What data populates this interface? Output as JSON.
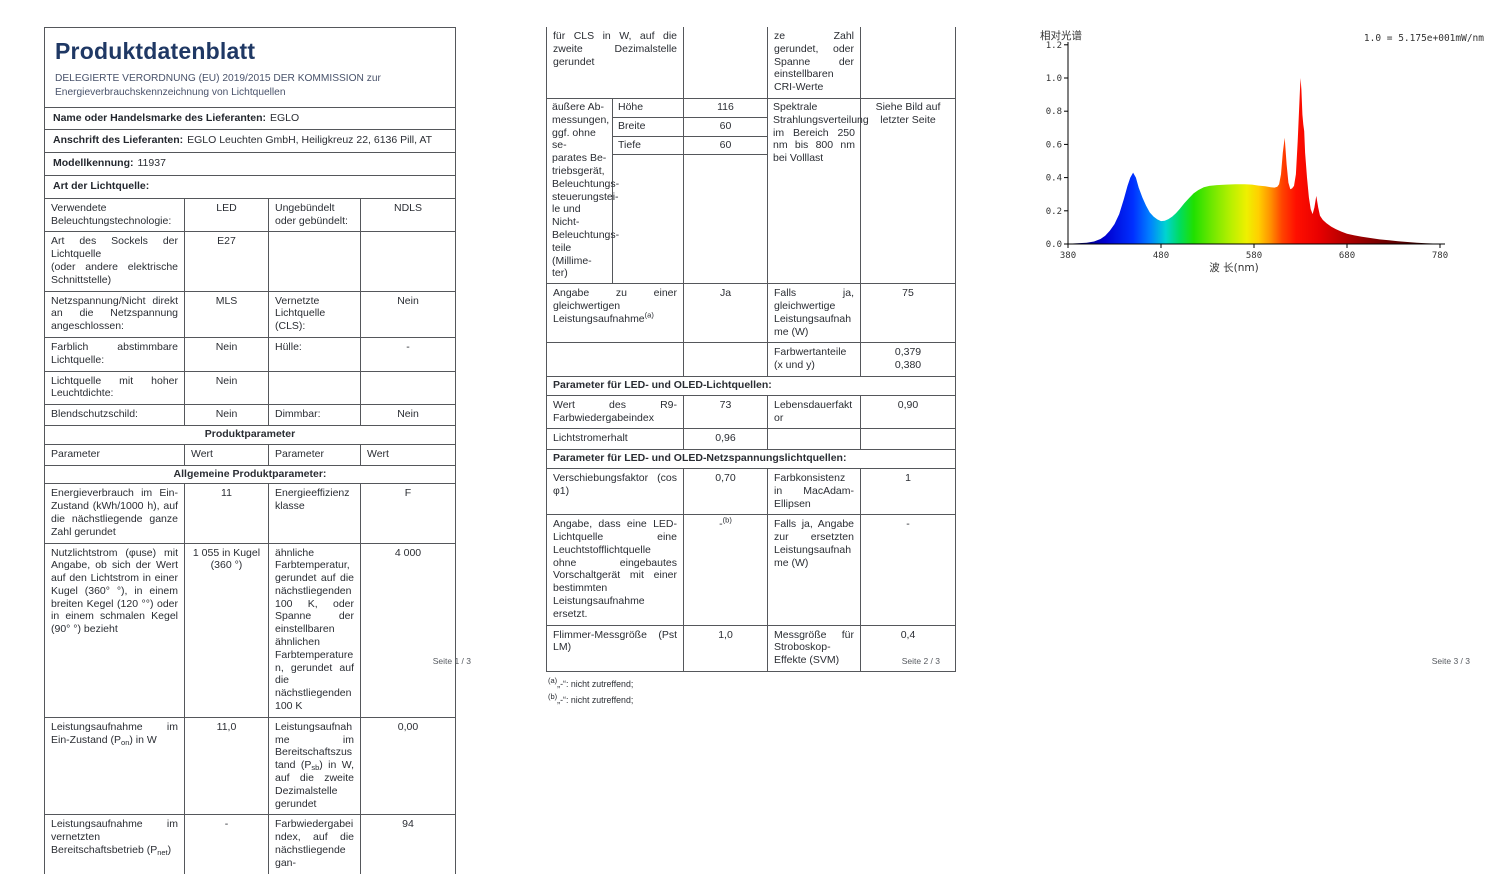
{
  "page1": {
    "title": "Produktdatenblatt",
    "subtitle_line1": "DELEGIERTE VERORDNUNG (EU) 2019/2015 DER KOMMISSION zur",
    "subtitle_line2": "Energieverbrauchskennzeichnung von Lichtquellen",
    "supplier_label": "Name oder Handelsmarke des Lieferanten:",
    "supplier_value": "EGLO",
    "address_label": "Anschrift des Lieferanten:",
    "address_value": "EGLO Leuchten GmbH, Heiligkreuz 22, 6136 Pill, AT",
    "model_label": "Modellkennung:",
    "model_value": "11937",
    "light_source_label": "Art der Lichtquelle:",
    "tech": {
      "r1p1": "Verwendete Beleuchtungstechnologie:",
      "r1v1": "LED",
      "r1p2": "Ungebündelt oder gebündelt:",
      "r1v2": "NDLS",
      "r2p1": "Art des Sockels der Lichtquelle\n(oder andere elektrische Schnittstelle)",
      "r2v1": "E27",
      "r2p2": "",
      "r2v2": "",
      "r3p1": "Netzspannung/Nicht direkt an die Netzspannung angeschlossen:",
      "r3v1": "MLS",
      "r3p2": "Vernetzte Lichtquelle (CLS):",
      "r3v2": "Nein",
      "r4p1": "Farblich abstimmbare Lichtquelle:",
      "r4v1": "Nein",
      "r4p2": "Hülle:",
      "r4v2": "-",
      "r5p1": "Lichtquelle mit hoher Leuchtdichte:",
      "r5v1": "Nein",
      "r5p2": "",
      "r5v2": "",
      "r6p1": "Blendschutzschild:",
      "r6v1": "Nein",
      "r6p2": "Dimmbar:",
      "r6v2": "Nein"
    },
    "sections": {
      "produktparameter": "Produktparameter",
      "col_param": "Parameter",
      "col_wert": "Wert",
      "allgemeine": "Allgemeine Produktparameter:"
    },
    "params": {
      "r1p1": "Energieverbrauch im Ein-Zustand (kWh/1000 h), auf die nächstliegende ganze Zahl gerundet",
      "r1v1": "11",
      "r1p2": "Energieeffizienzklasse",
      "r1v2": "F",
      "r2p1": "Nutzlichtstrom (φuse) mit Angabe, ob sich der Wert auf den Lichtstrom in einer Kugel (360° °), in einem breiten Kegel (120 °°) oder in einem schmalen Kegel (90° °) bezieht",
      "r2v1": "1 055 in Kugel (360 °)",
      "r2p2": "ähnliche Farbtemperatur, gerundet auf die nächstliegenden 100 K, oder Spanne der einstellbaren ähnlichen Farbtemperaturen, gerundet auf die nächstliegenden 100 K",
      "r2v2": "4 000",
      "r3p1_pre": "Leistungsaufnahme im Ein-Zustand (P",
      "r3p1_sub": "on",
      "r3p1_post": ") in W",
      "r3v1": "11,0",
      "r3p2_pre": "Leistungsaufnahme im Bereitschaftszustand (P",
      "r3p2_sub": "sb",
      "r3p2_post": ") in W, auf die zweite Dezimalstelle gerundet",
      "r3v2": "0,00",
      "r4p1_pre": "Leistungsaufnahme im vernetzten Bereitschaftsbetrieb (P",
      "r4p1_sub": "net",
      "r4p1_post": ")",
      "r4v1": "-",
      "r4p2": "Farbwiedergabein­dex, auf die nächstliegende gan-",
      "r4v2": "94"
    }
  },
  "page2": {
    "cont": {
      "p1": "für CLS in W, auf die zweite Dezimalstelle gerundet",
      "v1": "",
      "p2": "ze Zahl gerundet, oder Spanne der einstellbaren CRI-Werte",
      "v2": ""
    },
    "dims": {
      "label": "äußere Ab-\nmessungen,\nggf. ohne se-\nparates Be-\ntriebsgerät,\nBeleuchtungs-\nsteuerungstei-\nle und Nicht-\nBeleuchtungs-\nteile (Millime-\nter)",
      "hoehe": "Höhe",
      "hoehe_v": "116",
      "breite": "Breite",
      "breite_v": "60",
      "tiefe": "Tiefe",
      "tiefe_v": "60",
      "p2": "Spektrale Strahlungsverteilung im Bereich 250 nm bis 800 nm bei Volllast",
      "v2": "Siehe Bild auf letzter Seite"
    },
    "equiv": {
      "p1": "Angabe zu einer gleichwertigen Leistungsaufnahme",
      "p1_sup": "(a)",
      "v1": "Ja",
      "p2": "Falls ja, gleichwertige Leistungsaufnahme (W)",
      "v2": "75"
    },
    "chrom": {
      "p2": "Farbwertanteile (x und y)",
      "v2a": "0,379",
      "v2b": "0,380"
    },
    "led_section": "Parameter für LED- und OLED-Lichtquellen:",
    "r9": {
      "p1": "Wert des R9-Farbwiedergabeindex",
      "v1": "73",
      "p2": "Lebensdauerfaktor",
      "v2": "0,90"
    },
    "lumen": {
      "p1": "Lichtstromerhalt",
      "v1": "0,96",
      "p2": "",
      "v2": ""
    },
    "mains_section": "Parameter für LED- und OLED-Netzspannungslichtquellen:",
    "disp": {
      "p1": "Verschiebungsfaktor (cos φ1)",
      "v1": "0,70",
      "p2": "Farbkonsistenz in MacAdam-Ellipsen",
      "v2": "1"
    },
    "replace": {
      "p1": "Angabe, dass eine LED-Lichtquelle eine Leuchtstofflichtquelle ohne eingebautes Vorschaltgerät mit einer bestimmten Leistungsaufnahme ersetzt.",
      "v1_pre": "-",
      "v1_sup": "(b)",
      "p2": "Falls ja, Angabe zur ersetzten Leistungsaufnahme (W)",
      "v2": "-"
    },
    "flicker": {
      "p1": "Flimmer-Messgröße (Pst LM)",
      "v1": "1,0",
      "p2": "Messgröße für Stroboskop-Effekte (SVM)",
      "v2": "0,4"
    },
    "footnote_a_sup": "(a)",
    "footnote_a": "„-“: nicht zutreffend;",
    "footnote_b_sup": "(b)",
    "footnote_b": "„-“: nicht zutreffend;"
  },
  "footer": {
    "page1": "Seite 1 / 3",
    "page2": "Seite 2 / 3",
    "page3": "Seite 3 / 3"
  },
  "chart_data": {
    "type": "area",
    "title_left": "相对光谱",
    "scale_note": "1.0 = 5.175e+001mW/nm",
    "xlabel": "波 长(nm)",
    "xlim": [
      380,
      780
    ],
    "ylim": [
      0,
      1.2
    ],
    "x_ticks": [
      380,
      480,
      580,
      680,
      780
    ],
    "y_ticks": [
      "0.0",
      "0.2",
      "0.4",
      "0.6",
      "0.8",
      "1.0",
      "1.2"
    ],
    "grid": false,
    "series": [
      {
        "name": "relative spectral power distribution",
        "points": [
          [
            380,
            0.002
          ],
          [
            390,
            0.004
          ],
          [
            400,
            0.008
          ],
          [
            408,
            0.015
          ],
          [
            415,
            0.03
          ],
          [
            420,
            0.05
          ],
          [
            425,
            0.08
          ],
          [
            430,
            0.12
          ],
          [
            435,
            0.18
          ],
          [
            440,
            0.27
          ],
          [
            444,
            0.35
          ],
          [
            447,
            0.4
          ],
          [
            450,
            0.43
          ],
          [
            453,
            0.4
          ],
          [
            456,
            0.34
          ],
          [
            460,
            0.28
          ],
          [
            464,
            0.23
          ],
          [
            468,
            0.19
          ],
          [
            472,
            0.165
          ],
          [
            476,
            0.148
          ],
          [
            480,
            0.138
          ],
          [
            484,
            0.14
          ],
          [
            488,
            0.15
          ],
          [
            492,
            0.165
          ],
          [
            496,
            0.185
          ],
          [
            500,
            0.21
          ],
          [
            505,
            0.245
          ],
          [
            510,
            0.275
          ],
          [
            515,
            0.305
          ],
          [
            520,
            0.325
          ],
          [
            526,
            0.342
          ],
          [
            532,
            0.35
          ],
          [
            540,
            0.355
          ],
          [
            550,
            0.358
          ],
          [
            560,
            0.36
          ],
          [
            570,
            0.36
          ],
          [
            578,
            0.358
          ],
          [
            585,
            0.352
          ],
          [
            592,
            0.348
          ],
          [
            598,
            0.342
          ],
          [
            602,
            0.34
          ],
          [
            605,
            0.345
          ],
          [
            607,
            0.36
          ],
          [
            609,
            0.42
          ],
          [
            611,
            0.55
          ],
          [
            613,
            0.64
          ],
          [
            615,
            0.48
          ],
          [
            617,
            0.37
          ],
          [
            619,
            0.33
          ],
          [
            621,
            0.335
          ],
          [
            623,
            0.35
          ],
          [
            625,
            0.42
          ],
          [
            627,
            0.62
          ],
          [
            629,
            0.88
          ],
          [
            630,
            1.0
          ],
          [
            631,
            0.93
          ],
          [
            632,
            0.78
          ],
          [
            633,
            0.72
          ],
          [
            634,
            0.68
          ],
          [
            635,
            0.55
          ],
          [
            637,
            0.4
          ],
          [
            639,
            0.28
          ],
          [
            641,
            0.21
          ],
          [
            643,
            0.18
          ],
          [
            645,
            0.22
          ],
          [
            647,
            0.29
          ],
          [
            649,
            0.22
          ],
          [
            651,
            0.17
          ],
          [
            654,
            0.145
          ],
          [
            658,
            0.125
          ],
          [
            663,
            0.105
          ],
          [
            668,
            0.09
          ],
          [
            674,
            0.075
          ],
          [
            680,
            0.062
          ],
          [
            688,
            0.052
          ],
          [
            696,
            0.044
          ],
          [
            705,
            0.036
          ],
          [
            715,
            0.028
          ],
          [
            725,
            0.022
          ],
          [
            735,
            0.017
          ],
          [
            745,
            0.012
          ],
          [
            755,
            0.008
          ],
          [
            765,
            0.005
          ],
          [
            780,
            0.002
          ]
        ]
      }
    ],
    "gradient_stops": [
      [
        380,
        "#000045"
      ],
      [
        420,
        "#0000d0"
      ],
      [
        450,
        "#0030ff"
      ],
      [
        468,
        "#0080ff"
      ],
      [
        485,
        "#00d4d0"
      ],
      [
        500,
        "#00dc60"
      ],
      [
        515,
        "#20e000"
      ],
      [
        535,
        "#70e800"
      ],
      [
        555,
        "#b8f000"
      ],
      [
        572,
        "#eef000"
      ],
      [
        585,
        "#ffd000"
      ],
      [
        598,
        "#ff9000"
      ],
      [
        610,
        "#ff4400"
      ],
      [
        625,
        "#ff0f00"
      ],
      [
        650,
        "#e80000"
      ],
      [
        680,
        "#b00000"
      ],
      [
        715,
        "#780000"
      ],
      [
        750,
        "#480000"
      ],
      [
        780,
        "#280000"
      ]
    ]
  }
}
